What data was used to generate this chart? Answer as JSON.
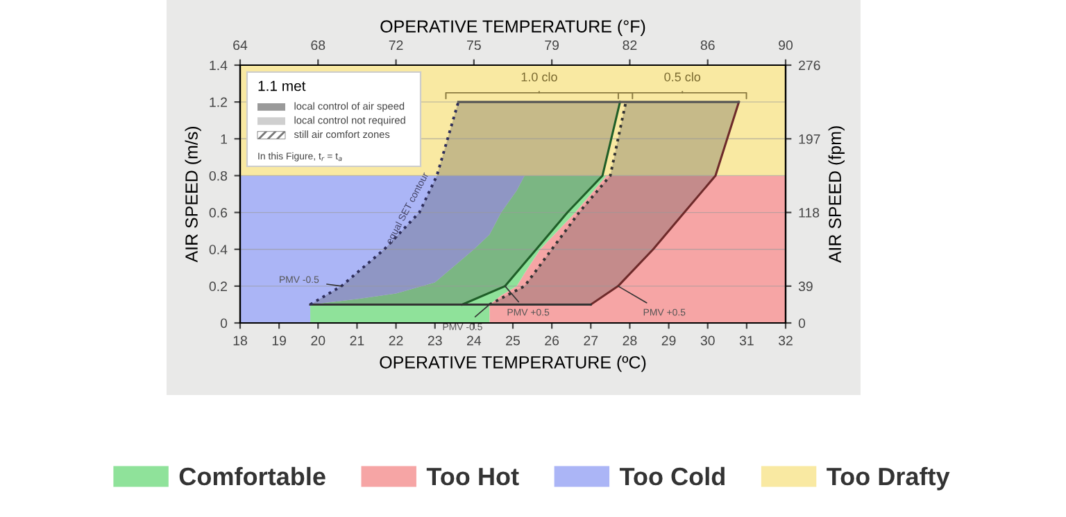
{
  "chart_data": {
    "type": "area",
    "stacked": true,
    "xlabel": "OPERATIVE TEMPERATURE (ºC)",
    "ylabel": "AIR SPEED (m/s)",
    "x2label": "OPERATIVE TEMPERATURE (°F)",
    "y2label": "AIR SPEED (fpm)",
    "xlim": [
      18,
      32
    ],
    "xticks": [
      18,
      19,
      20,
      21,
      22,
      23,
      24,
      25,
      26,
      27,
      28,
      29,
      30,
      31,
      32
    ],
    "ylim": [
      0,
      1.4
    ],
    "yticks": [
      0,
      0.2,
      0.4,
      0.6,
      0.8,
      1,
      1.2,
      1.4
    ],
    "x2lim": [
      64.4,
      89.6
    ],
    "x2ticks": [
      {
        "value": 64.4,
        "label": "64"
      },
      {
        "value": 68,
        "label": "68"
      },
      {
        "value": 71.6,
        "label": "72"
      },
      {
        "value": 75.2,
        "label": "75"
      },
      {
        "value": 78.8,
        "label": "79"
      },
      {
        "value": 82.4,
        "label": "82"
      },
      {
        "value": 86,
        "label": "86"
      },
      {
        "value": 89.6,
        "label": "90"
      }
    ],
    "y2lim": [
      0,
      275.6
    ],
    "y2ticks": [
      0,
      {
        "value": 39.37,
        "label": "39"
      },
      {
        "value": 118.11,
        "label": "118"
      },
      {
        "value": 196.85,
        "label": "197"
      },
      {
        "value": 275.6,
        "label": "276"
      }
    ],
    "x": [
      18,
      19.8,
      19.8,
      21,
      22,
      23,
      24,
      24.4,
      24.4,
      24.7,
      25.1,
      25.3,
      25.7,
      26.6,
      27.4,
      32
    ],
    "grid": "y",
    "legend": "bottom",
    "series": [
      {
        "name": "Too Hot",
        "color": "#f6a5a5",
        "values": [
          null,
          null,
          null,
          null,
          null,
          null,
          null,
          null,
          0.1,
          0.15,
          0.2,
          0.27,
          0.4,
          0.6,
          0.8,
          0.8
        ]
      },
      {
        "name": "Comfortable",
        "color": "#8fe29a",
        "values": [
          null,
          null,
          0.1,
          0.13,
          0.16,
          0.22,
          0.4,
          0.48,
          0.38,
          0.45,
          0.52,
          0.53,
          0.4,
          0.2,
          0,
          null
        ]
      },
      {
        "name": "Too Cold",
        "color": "#abb5f6",
        "values": [
          0.8,
          0.8,
          0.7,
          0.67,
          0.64,
          0.58,
          0.4,
          0.32,
          0.32,
          0.2,
          0.08,
          0,
          null,
          null,
          null,
          null
        ]
      },
      {
        "name": "Too Drafty",
        "color": "#f9e9a2",
        "values": [
          0.6,
          0.6,
          0.6,
          0.6,
          0.6,
          0.6,
          0.6,
          0.6,
          0.6,
          0.6,
          0.6,
          0.6,
          0.6,
          0.6,
          0.6,
          0.6
        ]
      },
      {
        "type": "line",
        "line_style": "dotted",
        "color": "#2d2d5a",
        "x": [
          19.8,
          20.6,
          21.7,
          22.6,
          23.05,
          23.6
        ],
        "values": [
          0.1,
          0.2,
          0.4,
          0.6,
          0.8,
          1.2
        ]
      },
      {
        "type": "line",
        "line_style": "solid",
        "color": "#1f5e28",
        "x": [
          23.7,
          24.8,
          25.6,
          26.4,
          27.3,
          27.75
        ],
        "values": [
          0.1,
          0.2,
          0.4,
          0.6,
          0.8,
          1.2
        ]
      },
      {
        "type": "line",
        "line_style": "dotted",
        "color": "#333333",
        "x": [
          24.4,
          25.3,
          26.0,
          26.7,
          27.5,
          27.9
        ],
        "values": [
          0.1,
          0.2,
          0.4,
          0.6,
          0.8,
          1.2
        ]
      },
      {
        "type": "line",
        "line_style": "solid",
        "color": "#6e2a2a",
        "x": [
          27.0,
          27.7,
          28.6,
          29.4,
          30.2,
          30.8
        ],
        "values": [
          0.1,
          0.2,
          0.4,
          0.6,
          0.8,
          1.2
        ]
      },
      {
        "type": "line",
        "line_style": "solid",
        "color": "#333333",
        "x": [
          19.8,
          27.0
        ],
        "values": [
          0.1,
          0.1
        ]
      },
      {
        "type": "line",
        "line_style": "solid",
        "color": "#555555",
        "x": [
          23.6,
          30.8
        ],
        "values": [
          1.2,
          1.2
        ]
      }
    ],
    "annotations": [
      "1.0 clo",
      "0.5 clo",
      {
        "text": "equal SET contour",
        "x": 22.6,
        "y": 0.6
      },
      {
        "text": "PMV -0.5",
        "x": 20.6,
        "y": 0.2
      },
      {
        "text": "PMV -0.5",
        "x": 24.4,
        "y": 0.1
      },
      {
        "text": "PMV +0.5",
        "x": 24.8,
        "y": 0.2
      },
      {
        "text": "PMV +0.5",
        "x": 27.7,
        "y": 0.2
      },
      "1.1 met",
      "local control of air speed",
      "local control not required",
      "still air comfort zones",
      "In this Figure, t$_{r}$ = t$_{a}$"
    ]
  }
}
